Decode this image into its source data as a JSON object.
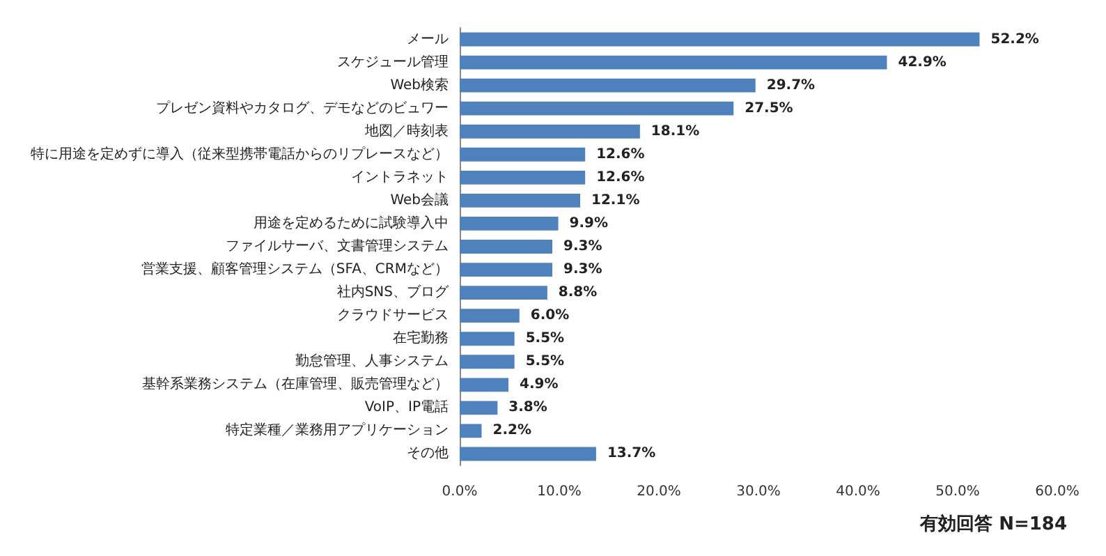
{
  "chart_data": {
    "type": "bar",
    "orientation": "horizontal",
    "categories": [
      "メール",
      "スケジュール管理",
      "Web検索",
      "プレゼン資料やカタログ、デモなどのビュワー",
      "地図／時刻表",
      "特に用途を定めずに導入（従来型携帯電話からのリプレースなど）",
      "イントラネット",
      "Web会議",
      "用途を定めるために試験導入中",
      "ファイルサーバ、文書管理システム",
      "営業支援、顧客管理システム（SFA、CRMなど）",
      "社内SNS、ブログ",
      "クラウドサービス",
      "在宅勤務",
      "勤怠管理、人事システム",
      "基幹系業務システム（在庫管理、販売管理など）",
      "VoIP、IP電話",
      "特定業種／業務用アプリケーション",
      "その他"
    ],
    "values": [
      52.2,
      42.9,
      29.7,
      27.5,
      18.1,
      12.6,
      12.6,
      12.1,
      9.9,
      9.3,
      9.3,
      8.8,
      6.0,
      5.5,
      5.5,
      4.9,
      3.8,
      2.2,
      13.7
    ],
    "value_labels": [
      "52.2%",
      "42.9%",
      "29.7%",
      "27.5%",
      "18.1%",
      "12.6%",
      "12.6%",
      "12.1%",
      "9.9%",
      "9.3%",
      "9.3%",
      "8.8%",
      "6.0%",
      "5.5%",
      "5.5%",
      "4.9%",
      "3.8%",
      "2.2%",
      "13.7%"
    ],
    "color": "#4f81bd",
    "xlim": [
      0,
      60
    ],
    "xticks": [
      {
        "value": 0,
        "label": "0.0%"
      },
      {
        "value": 10,
        "label": "10.0%"
      },
      {
        "value": 20,
        "label": "20.0%"
      },
      {
        "value": 30,
        "label": "30.0%"
      },
      {
        "value": 40,
        "label": "40.0%"
      },
      {
        "value": 50,
        "label": "50.0%"
      },
      {
        "value": 60,
        "label": "60.0%"
      }
    ],
    "grid": false,
    "annotations": [
      "有効回答 N=184"
    ]
  }
}
